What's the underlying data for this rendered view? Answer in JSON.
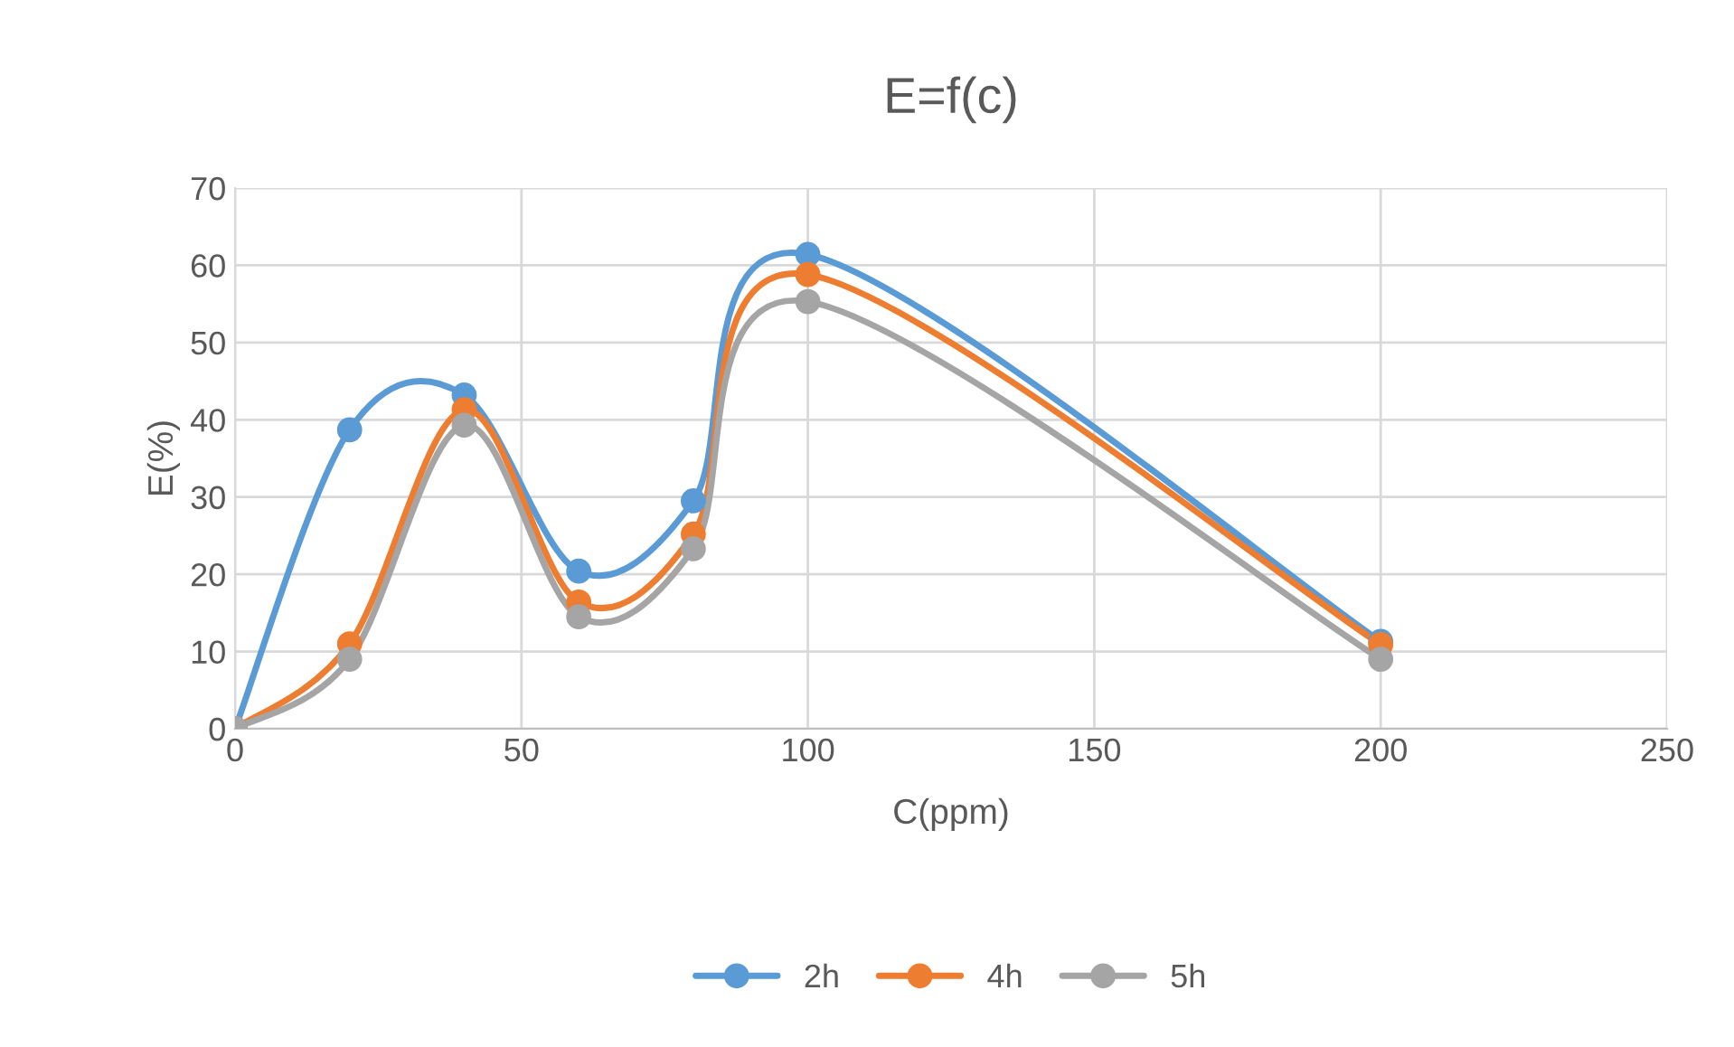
{
  "chart_data": {
    "type": "line",
    "title": "E=f(c)",
    "xlabel": "C(ppm)",
    "ylabel": "E(%)",
    "x": [
      0,
      20,
      40,
      60,
      80,
      100,
      200
    ],
    "series": [
      {
        "name": "2h",
        "color": "#5b9bd5",
        "values": [
          0,
          38.7,
          43.2,
          20.4,
          29.5,
          61.4,
          11.3
        ]
      },
      {
        "name": "4h",
        "color": "#ed7d31",
        "values": [
          0,
          11.0,
          41.3,
          16.4,
          25.2,
          58.8,
          10.9
        ]
      },
      {
        "name": "5h",
        "color": "#a5a5a5",
        "values": [
          0,
          9.0,
          39.3,
          14.5,
          23.3,
          55.3,
          9.0
        ]
      }
    ],
    "xlim": [
      0,
      250
    ],
    "xticks": [
      0,
      50,
      100,
      150,
      200,
      250
    ],
    "ylim": [
      0,
      70
    ],
    "yticks": [
      0,
      10,
      20,
      30,
      40,
      50,
      60,
      70
    ],
    "grid": true,
    "legend": "bottom",
    "marker": "circle",
    "line_style": "solid"
  }
}
